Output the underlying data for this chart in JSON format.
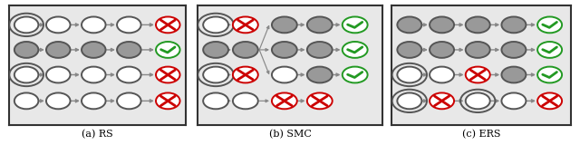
{
  "fig_width": 6.4,
  "fig_height": 1.6,
  "dpi": 100,
  "bg_color": "#ffffff",
  "panel_bg": "#e8e8e8",
  "border_color": "#333333",
  "node_empty_fc": "#ffffff",
  "node_filled_fc": "#999999",
  "node_ec": "#555555",
  "arrow_color": "#888888",
  "cross_color": "#cc0000",
  "check_color": "#229922",
  "caption_fontsize": 8,
  "captions": [
    "(a) RS",
    "(b) SMC",
    "(c) ERS"
  ]
}
